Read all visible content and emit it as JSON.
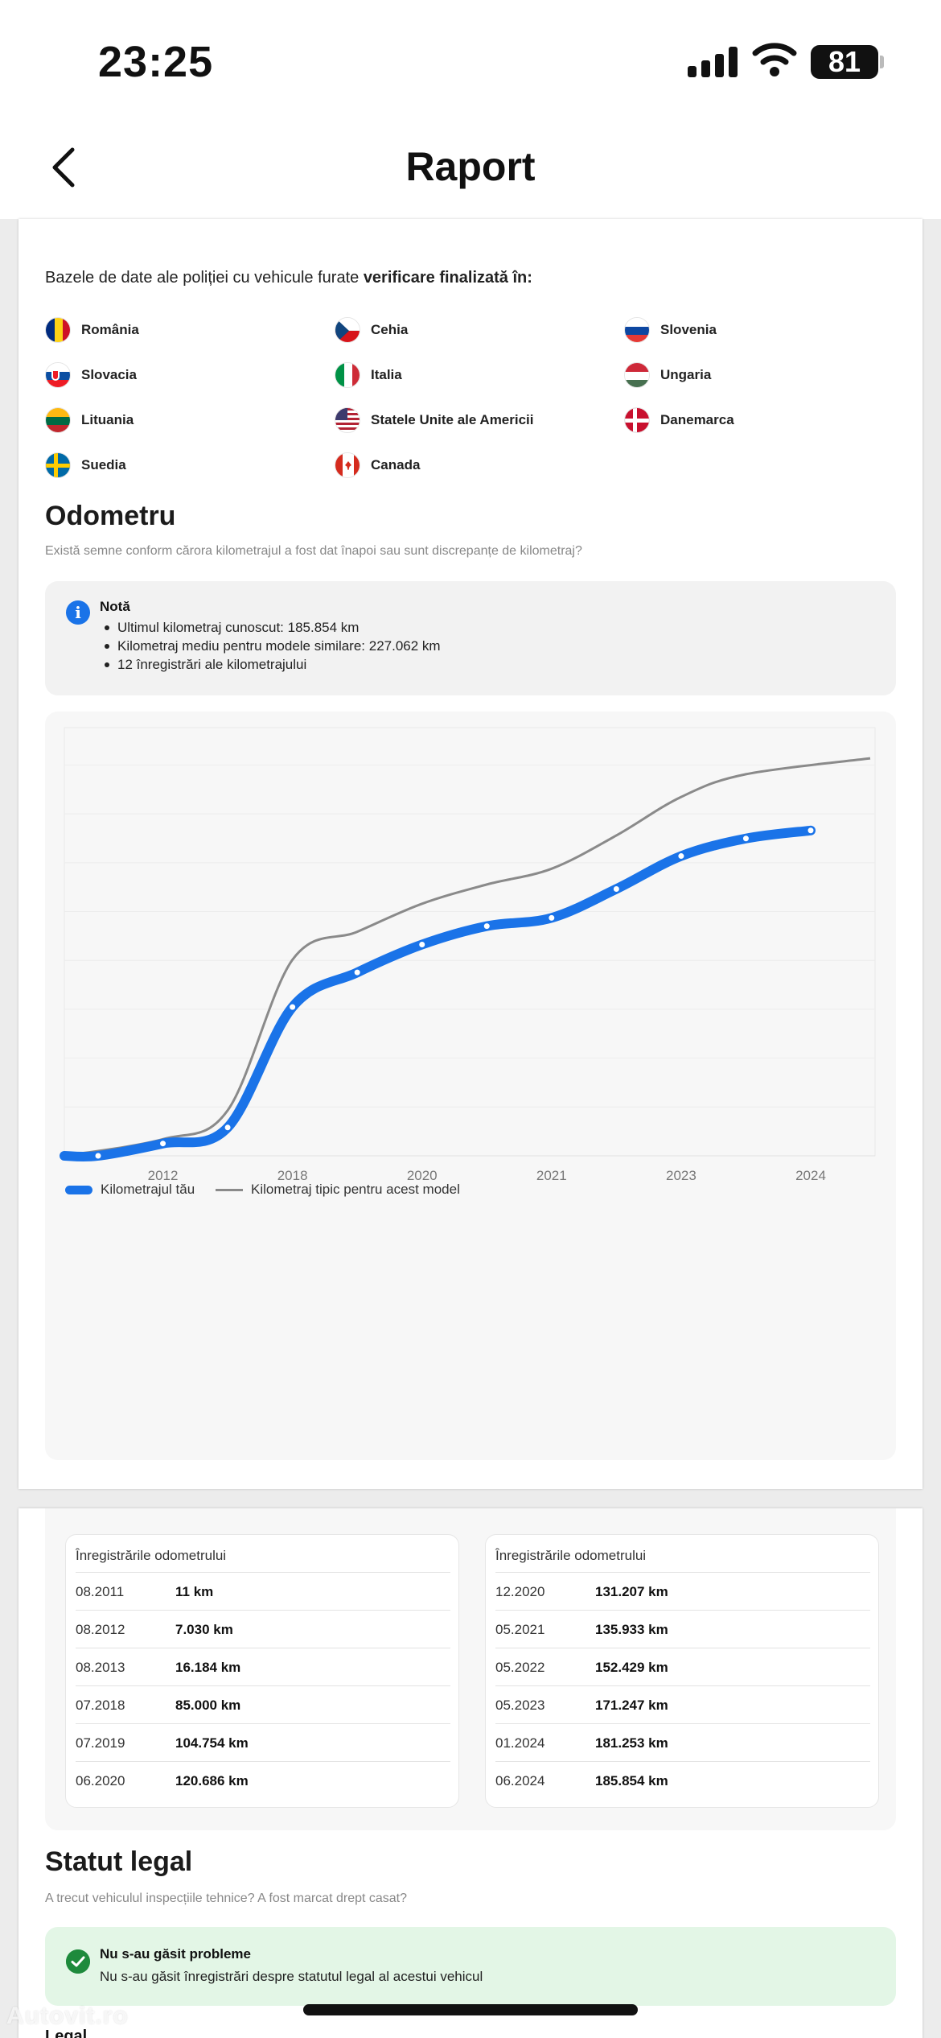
{
  "status": {
    "time": "23:25",
    "battery": "81"
  },
  "header": {
    "title": "Raport"
  },
  "stolen": {
    "intro_prefix": "Bazele de date ale poliției cu vehicule furate ",
    "intro_bold": "verificare finalizată în:",
    "countries": [
      {
        "name": "România",
        "flag": "ro"
      },
      {
        "name": "Cehia",
        "flag": "cz"
      },
      {
        "name": "Slovenia",
        "flag": "si"
      },
      {
        "name": "Slovacia",
        "flag": "sk"
      },
      {
        "name": "Italia",
        "flag": "it"
      },
      {
        "name": "Ungaria",
        "flag": "hu"
      },
      {
        "name": "Lituania",
        "flag": "lt"
      },
      {
        "name": "Statele Unite ale Americii",
        "flag": "us"
      },
      {
        "name": "Danemarca",
        "flag": "dk"
      },
      {
        "name": "Suedia",
        "flag": "se"
      },
      {
        "name": "Canada",
        "flag": "ca"
      }
    ]
  },
  "odometer": {
    "title": "Odometru",
    "subtitle": "Există semne conform cărora kilometrajul a fost dat înapoi sau sunt discrepanțe de kilometraj?",
    "note": {
      "title": "Notă",
      "items": [
        "Ultimul kilometraj cunoscut: 185.854 km",
        "Kilometraj mediu pentru modele similare: 227.062 km",
        "12 înregistrări ale kilometrajului"
      ]
    }
  },
  "chart_data": {
    "type": "line",
    "x_tick_labels": [
      "2012",
      "2018",
      "2020",
      "2021",
      "2023",
      "2024"
    ],
    "categories": [
      "08.2011",
      "08.2012",
      "08.2013",
      "07.2018",
      "07.2019",
      "06.2020",
      "12.2020",
      "05.2021",
      "05.2022",
      "05.2023",
      "01.2024",
      "06.2024"
    ],
    "series": [
      {
        "name": "Kilometrajul tău",
        "color": "#1a73e8",
        "values": [
          11,
          7030,
          16184,
          85000,
          104754,
          120686,
          131207,
          135933,
          152429,
          171247,
          181253,
          185854
        ]
      },
      {
        "name": "Kilometraj tipic pentru acest model",
        "color": "#8a8a8a",
        "values": [
          0,
          9500,
          26000,
          112000,
          128000,
          144000,
          155000,
          164000,
          183000,
          205000,
          218000,
          227062
        ]
      }
    ],
    "ylim": [
      0,
      240000
    ],
    "grid": true,
    "legend": "bottom-left"
  },
  "records": {
    "heading": "Înregistrările odometrului",
    "left": [
      {
        "date": "08.2011",
        "km": "11 km"
      },
      {
        "date": "08.2012",
        "km": "7.030 km"
      },
      {
        "date": "08.2013",
        "km": "16.184 km"
      },
      {
        "date": "07.2018",
        "km": "85.000 km"
      },
      {
        "date": "07.2019",
        "km": "104.754 km"
      },
      {
        "date": "06.2020",
        "km": "120.686 km"
      }
    ],
    "right": [
      {
        "date": "12.2020",
        "km": "131.207 km"
      },
      {
        "date": "05.2021",
        "km": "135.933 km"
      },
      {
        "date": "05.2022",
        "km": "152.429 km"
      },
      {
        "date": "05.2023",
        "km": "171.247 km"
      },
      {
        "date": "01.2024",
        "km": "181.253 km"
      },
      {
        "date": "06.2024",
        "km": "185.854 km"
      }
    ]
  },
  "legal": {
    "title": "Statut legal",
    "subtitle": "A trecut vehiculul inspecțiile tehnice? A fost marcat drept casat?",
    "ok_title": "Nu s-au găsit probleme",
    "ok_text": "Nu s-au găsit înregistrări despre statutul legal al acestui vehicul",
    "next_heading": "Legal"
  },
  "watermark": "Autovit.ro",
  "colors": {
    "accent": "#1a73e8",
    "success": "#1e8a3c",
    "success_bg": "#e3f6e6"
  }
}
